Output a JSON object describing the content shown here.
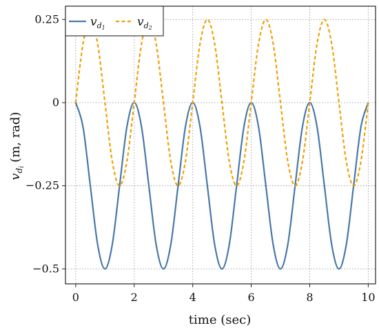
{
  "chart_data": {
    "type": "line",
    "xlabel": "time (sec)",
    "ylabel": {
      "main": "v",
      "sub": "d",
      "subsub": "i",
      "unit": "(m, rad)"
    },
    "xlim": [
      -0.35,
      10.25
    ],
    "ylim": [
      -0.545,
      0.29
    ],
    "x_ticks": [
      0,
      2,
      4,
      6,
      8,
      10
    ],
    "x_tick_labels": [
      "0",
      "2",
      "4",
      "6",
      "8",
      "10"
    ],
    "y_ticks": [
      0.25,
      0,
      -0.25,
      -0.5
    ],
    "y_tick_labels": [
      "0.25",
      "0",
      "−0.25",
      "−0.5"
    ],
    "grid": true,
    "legend_placement": "top-left",
    "x": [
      0,
      0.25,
      0.5,
      0.75,
      1,
      1.25,
      1.5,
      1.75,
      2,
      2.25,
      2.5,
      2.75,
      3,
      3.25,
      3.5,
      3.75,
      4,
      4.25,
      4.5,
      4.75,
      5,
      5.25,
      5.5,
      5.75,
      6,
      6.25,
      6.5,
      6.75,
      7,
      7.25,
      7.5,
      7.75,
      8,
      8.25,
      8.5,
      8.75,
      9,
      9.25,
      9.5,
      9.75,
      10
    ],
    "series": [
      {
        "name": "v_d1",
        "label_main": "v",
        "label_sub": "d",
        "label_subsub": "1",
        "color": "#4878a8",
        "dash": "solid",
        "values": [
          0,
          -0.073,
          -0.25,
          -0.427,
          -0.5,
          -0.427,
          -0.25,
          -0.073,
          0,
          -0.073,
          -0.25,
          -0.427,
          -0.5,
          -0.427,
          -0.25,
          -0.073,
          0,
          -0.073,
          -0.25,
          -0.427,
          -0.5,
          -0.427,
          -0.25,
          -0.073,
          0,
          -0.073,
          -0.25,
          -0.427,
          -0.5,
          -0.427,
          -0.25,
          -0.073,
          0,
          -0.073,
          -0.25,
          -0.427,
          -0.5,
          -0.427,
          -0.25,
          -0.073,
          0
        ]
      },
      {
        "name": "v_d2",
        "label_main": "v",
        "label_sub": "d",
        "label_subsub": "2",
        "color": "#f0a000",
        "dash": "dashed",
        "values": [
          0,
          0.177,
          0.25,
          0.177,
          0,
          -0.177,
          -0.25,
          -0.177,
          0,
          0.177,
          0.25,
          0.177,
          0,
          -0.177,
          -0.25,
          -0.177,
          0,
          0.177,
          0.25,
          0.177,
          0,
          -0.177,
          -0.25,
          -0.177,
          0,
          0.177,
          0.25,
          0.177,
          0,
          -0.177,
          -0.25,
          -0.177,
          0,
          0.177,
          0.25,
          0.177,
          0,
          -0.177,
          -0.25,
          -0.177,
          0
        ]
      }
    ]
  }
}
